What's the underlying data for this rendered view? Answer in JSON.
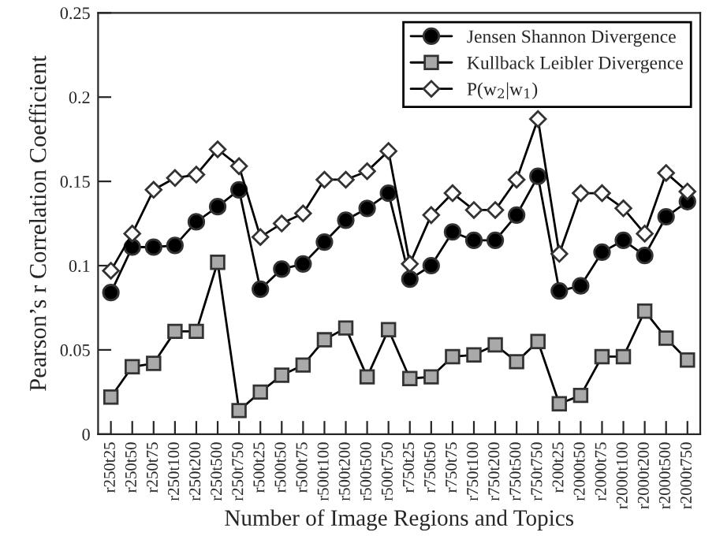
{
  "chart_data": {
    "type": "line",
    "categories": [
      "r250t25",
      "r250t50",
      "r250t75",
      "r250t100",
      "r250t200",
      "r250t500",
      "r250t750",
      "r500t25",
      "r500t50",
      "r500t75",
      "r500t100",
      "r500t200",
      "r500t500",
      "r500t750",
      "r750t25",
      "r750t50",
      "r750t75",
      "r750t100",
      "r750t200",
      "r750t500",
      "r750t750",
      "r200t25",
      "r2000t50",
      "r2000t75",
      "r2000t100",
      "r2000t200",
      "r2000t500",
      "r2000t750"
    ],
    "series": [
      {
        "name": "Jensen Shannon Divergence",
        "color": "#000000",
        "marker": "circle",
        "values": [
          0.084,
          0.111,
          0.111,
          0.112,
          0.126,
          0.135,
          0.145,
          0.086,
          0.098,
          0.101,
          0.114,
          0.127,
          0.134,
          0.143,
          0.092,
          0.1,
          0.12,
          0.115,
          0.115,
          0.13,
          0.153,
          0.085,
          0.088,
          0.108,
          0.115,
          0.106,
          0.129,
          0.138
        ]
      },
      {
        "name": "Kullback Leibler Divergence",
        "color": "#a9a9a9",
        "marker": "square",
        "values": [
          0.022,
          0.04,
          0.042,
          0.061,
          0.061,
          0.102,
          0.014,
          0.025,
          0.035,
          0.041,
          0.056,
          0.063,
          0.034,
          0.062,
          0.033,
          0.034,
          0.046,
          0.047,
          0.053,
          0.043,
          0.055,
          0.018,
          0.023,
          0.046,
          0.046,
          0.073,
          0.057,
          0.044
        ]
      },
      {
        "name": "P(w$_{2}$|w$_{1}$)",
        "color": "#ffffff",
        "marker": "diamond",
        "values": [
          0.097,
          0.119,
          0.145,
          0.152,
          0.154,
          0.169,
          0.159,
          0.117,
          0.125,
          0.131,
          0.151,
          0.151,
          0.156,
          0.168,
          0.101,
          0.13,
          0.143,
          0.133,
          0.133,
          0.151,
          0.187,
          0.107,
          0.143,
          0.143,
          0.134,
          0.119,
          0.155,
          0.144
        ]
      }
    ],
    "xlabel": "Number of Image Regions and Topics",
    "ylabel": "Pearson’s r Correlation Coefficient",
    "ylim": [
      0,
      0.25
    ],
    "yticks": [
      0,
      0.05,
      0.1,
      0.15,
      0.2,
      0.25
    ],
    "legend": "top right",
    "line_style": "solid",
    "grid": false
  }
}
